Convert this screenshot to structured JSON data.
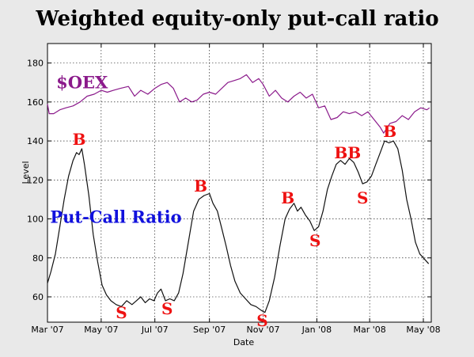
{
  "chart_data": {
    "type": "line",
    "title": "Weighted equity-only put-call ratio",
    "xlabel": "Date",
    "ylabel": "Level",
    "ylim": [
      47,
      190
    ],
    "xlim": [
      "2007-03-01",
      "2008-05-10"
    ],
    "grid": true,
    "yticks": [
      60,
      80,
      100,
      120,
      140,
      160,
      180
    ],
    "xticks": [
      {
        "date": "2007-03-01",
        "label": "Mar '07"
      },
      {
        "date": "2007-05-01",
        "label": "May '07"
      },
      {
        "date": "2007-07-01",
        "label": "Jul '07"
      },
      {
        "date": "2007-09-01",
        "label": "Sep '07"
      },
      {
        "date": "2007-11-01",
        "label": "Nov '07"
      },
      {
        "date": "2008-01-01",
        "label": "Jan '08"
      },
      {
        "date": "2008-03-01",
        "label": "Mar '08"
      },
      {
        "date": "2008-05-01",
        "label": "May '08"
      }
    ],
    "series": [
      {
        "name": "$OEX",
        "color": "#8b1a8b",
        "points": [
          [
            "2007-03-01",
            159
          ],
          [
            "2007-03-03",
            154
          ],
          [
            "2007-03-08",
            154
          ],
          [
            "2007-03-15",
            156
          ],
          [
            "2007-03-22",
            157
          ],
          [
            "2007-03-30",
            158
          ],
          [
            "2007-04-07",
            160
          ],
          [
            "2007-04-15",
            163
          ],
          [
            "2007-04-23",
            164
          ],
          [
            "2007-05-01",
            166
          ],
          [
            "2007-05-08",
            165
          ],
          [
            "2007-05-15",
            166
          ],
          [
            "2007-05-23",
            167
          ],
          [
            "2007-06-01",
            168
          ],
          [
            "2007-06-08",
            163
          ],
          [
            "2007-06-15",
            166
          ],
          [
            "2007-06-23",
            164
          ],
          [
            "2007-07-01",
            167
          ],
          [
            "2007-07-08",
            169
          ],
          [
            "2007-07-15",
            170
          ],
          [
            "2007-07-22",
            167
          ],
          [
            "2007-07-29",
            160
          ],
          [
            "2007-08-05",
            162
          ],
          [
            "2007-08-12",
            160
          ],
          [
            "2007-08-18",
            161
          ],
          [
            "2007-08-25",
            164
          ],
          [
            "2007-09-01",
            165
          ],
          [
            "2007-09-08",
            164
          ],
          [
            "2007-09-15",
            167
          ],
          [
            "2007-09-22",
            170
          ],
          [
            "2007-09-29",
            171
          ],
          [
            "2007-10-06",
            172
          ],
          [
            "2007-10-13",
            174
          ],
          [
            "2007-10-20",
            170
          ],
          [
            "2007-10-27",
            172
          ],
          [
            "2007-11-01",
            169
          ],
          [
            "2007-11-08",
            163
          ],
          [
            "2007-11-15",
            166
          ],
          [
            "2007-11-22",
            162
          ],
          [
            "2007-11-29",
            160
          ],
          [
            "2007-12-06",
            163
          ],
          [
            "2007-12-13",
            165
          ],
          [
            "2007-12-20",
            162
          ],
          [
            "2007-12-27",
            164
          ],
          [
            "2008-01-03",
            157
          ],
          [
            "2008-01-10",
            158
          ],
          [
            "2008-01-17",
            151
          ],
          [
            "2008-01-24",
            152
          ],
          [
            "2008-01-31",
            155
          ],
          [
            "2008-02-07",
            154
          ],
          [
            "2008-02-14",
            155
          ],
          [
            "2008-02-21",
            153
          ],
          [
            "2008-02-28",
            155
          ],
          [
            "2008-03-06",
            151
          ],
          [
            "2008-03-13",
            147
          ],
          [
            "2008-03-17",
            144
          ],
          [
            "2008-03-24",
            149
          ],
          [
            "2008-03-31",
            150
          ],
          [
            "2008-04-07",
            153
          ],
          [
            "2008-04-14",
            151
          ],
          [
            "2008-04-21",
            155
          ],
          [
            "2008-04-28",
            157
          ],
          [
            "2008-05-05",
            156
          ],
          [
            "2008-05-08",
            157
          ]
        ]
      },
      {
        "name": "Put-Call Ratio",
        "color": "#111111",
        "points": [
          [
            "2007-03-01",
            67
          ],
          [
            "2007-03-05",
            73
          ],
          [
            "2007-03-10",
            82
          ],
          [
            "2007-03-15",
            96
          ],
          [
            "2007-03-20",
            110
          ],
          [
            "2007-03-25",
            122
          ],
          [
            "2007-03-30",
            130
          ],
          [
            "2007-04-03",
            134
          ],
          [
            "2007-04-06",
            133
          ],
          [
            "2007-04-09",
            136
          ],
          [
            "2007-04-12",
            128
          ],
          [
            "2007-04-17",
            112
          ],
          [
            "2007-04-22",
            92
          ],
          [
            "2007-04-27",
            78
          ],
          [
            "2007-05-02",
            66
          ],
          [
            "2007-05-07",
            61
          ],
          [
            "2007-05-12",
            58
          ],
          [
            "2007-05-18",
            56
          ],
          [
            "2007-05-24",
            55
          ],
          [
            "2007-05-30",
            58
          ],
          [
            "2007-06-05",
            56
          ],
          [
            "2007-06-10",
            58
          ],
          [
            "2007-06-15",
            60
          ],
          [
            "2007-06-20",
            57
          ],
          [
            "2007-06-25",
            59
          ],
          [
            "2007-06-30",
            58
          ],
          [
            "2007-07-04",
            62
          ],
          [
            "2007-07-08",
            64
          ],
          [
            "2007-07-13",
            58
          ],
          [
            "2007-07-18",
            59
          ],
          [
            "2007-07-23",
            58
          ],
          [
            "2007-07-28",
            62
          ],
          [
            "2007-08-02",
            72
          ],
          [
            "2007-08-08",
            88
          ],
          [
            "2007-08-14",
            104
          ],
          [
            "2007-08-20",
            110
          ],
          [
            "2007-08-26",
            112
          ],
          [
            "2007-09-01",
            113
          ],
          [
            "2007-09-05",
            108
          ],
          [
            "2007-09-10",
            104
          ],
          [
            "2007-09-15",
            95
          ],
          [
            "2007-09-20",
            86
          ],
          [
            "2007-09-25",
            76
          ],
          [
            "2007-09-30",
            68
          ],
          [
            "2007-10-06",
            62
          ],
          [
            "2007-10-12",
            59
          ],
          [
            "2007-10-18",
            56
          ],
          [
            "2007-10-24",
            55
          ],
          [
            "2007-10-30",
            53
          ],
          [
            "2007-11-03",
            52
          ],
          [
            "2007-11-08",
            58
          ],
          [
            "2007-11-14",
            70
          ],
          [
            "2007-11-20",
            86
          ],
          [
            "2007-11-26",
            100
          ],
          [
            "2007-12-01",
            105
          ],
          [
            "2007-12-06",
            108
          ],
          [
            "2007-12-10",
            104
          ],
          [
            "2007-12-14",
            106
          ],
          [
            "2007-12-19",
            102
          ],
          [
            "2007-12-24",
            99
          ],
          [
            "2007-12-29",
            94
          ],
          [
            "2008-01-03",
            96
          ],
          [
            "2008-01-08",
            104
          ],
          [
            "2008-01-13",
            115
          ],
          [
            "2008-01-18",
            122
          ],
          [
            "2008-01-23",
            128
          ],
          [
            "2008-01-28",
            130
          ],
          [
            "2008-02-02",
            128
          ],
          [
            "2008-02-07",
            131
          ],
          [
            "2008-02-12",
            129
          ],
          [
            "2008-02-17",
            124
          ],
          [
            "2008-02-22",
            118
          ],
          [
            "2008-02-27",
            119
          ],
          [
            "2008-03-03",
            122
          ],
          [
            "2008-03-08",
            128
          ],
          [
            "2008-03-13",
            134
          ],
          [
            "2008-03-18",
            140
          ],
          [
            "2008-03-23",
            139
          ],
          [
            "2008-03-28",
            140
          ],
          [
            "2008-04-02",
            136
          ],
          [
            "2008-04-07",
            125
          ],
          [
            "2008-04-12",
            110
          ],
          [
            "2008-04-17",
            100
          ],
          [
            "2008-04-22",
            88
          ],
          [
            "2008-04-27",
            82
          ],
          [
            "2008-05-03",
            79
          ],
          [
            "2008-05-07",
            77
          ]
        ]
      }
    ],
    "annotations": [
      {
        "text": "B",
        "date": "2007-04-06",
        "y": 138
      },
      {
        "text": "S",
        "date": "2007-05-24",
        "y": 49
      },
      {
        "text": "S",
        "date": "2007-07-15",
        "y": 51
      },
      {
        "text": "B",
        "date": "2007-08-22",
        "y": 114
      },
      {
        "text": "S",
        "date": "2007-10-31",
        "y": 45
      },
      {
        "text": "B",
        "date": "2007-11-29",
        "y": 108
      },
      {
        "text": "S",
        "date": "2007-12-30",
        "y": 86
      },
      {
        "text": "BB",
        "date": "2008-02-05",
        "y": 131
      },
      {
        "text": "S",
        "date": "2008-02-22",
        "y": 108
      },
      {
        "text": "B",
        "date": "2008-03-24",
        "y": 142
      }
    ],
    "series_labels": [
      {
        "text": "$OEX",
        "date": "2007-03-11",
        "y": 167,
        "color": "#8b1a8b"
      },
      {
        "text": "Put-Call Ratio",
        "date": "2007-03-04",
        "y": 98,
        "color": "#1111dd"
      }
    ],
    "colors": {
      "background": "#e9e9e9",
      "plot": "#ffffff",
      "signal": "#ee1111"
    }
  }
}
